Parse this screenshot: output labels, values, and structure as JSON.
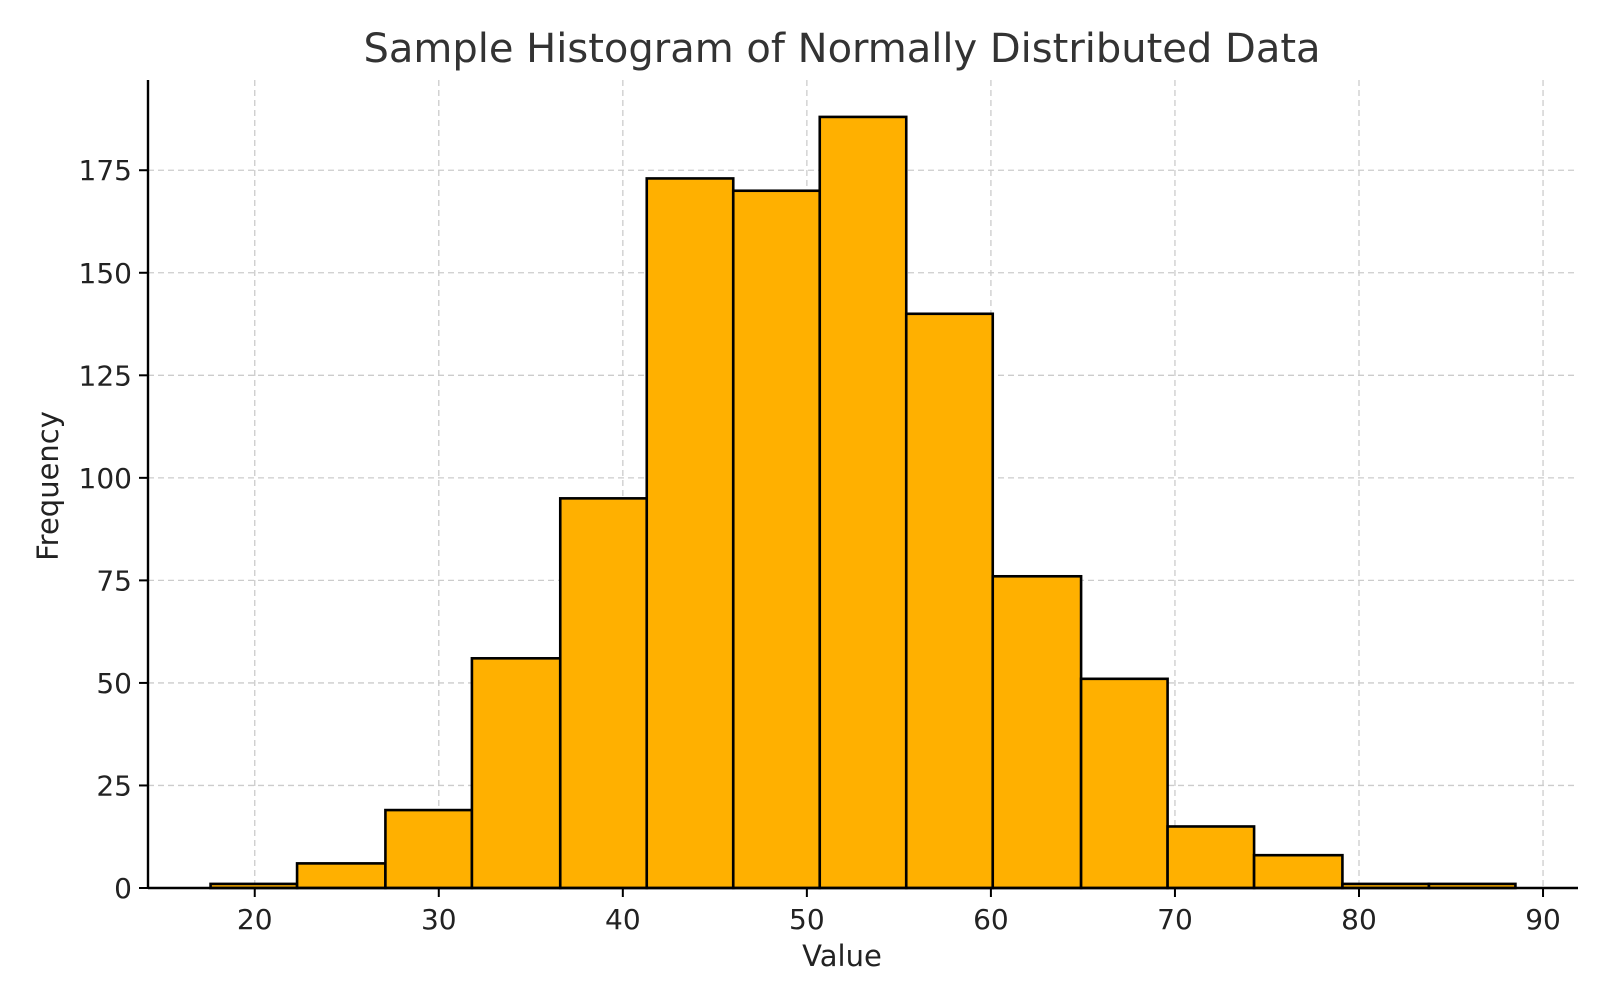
{
  "chart_data": {
    "type": "bar",
    "title": "Sample Histogram of Normally Distributed Data",
    "xlabel": "Value",
    "ylabel": "Frequency",
    "xlim": [
      14.2,
      91.9
    ],
    "ylim": [
      0,
      197
    ],
    "xticks": [
      20,
      30,
      40,
      50,
      60,
      70,
      80,
      90
    ],
    "yticks": [
      0,
      25,
      50,
      75,
      100,
      125,
      150,
      175
    ],
    "grid": true,
    "bins": [
      {
        "x0": 17.6,
        "x1": 22.3,
        "count": 1
      },
      {
        "x0": 22.3,
        "x1": 27.1,
        "count": 6
      },
      {
        "x0": 27.1,
        "x1": 31.8,
        "count": 19
      },
      {
        "x0": 31.8,
        "x1": 36.6,
        "count": 56
      },
      {
        "x0": 36.6,
        "x1": 41.3,
        "count": 95
      },
      {
        "x0": 41.3,
        "x1": 46.0,
        "count": 173
      },
      {
        "x0": 46.0,
        "x1": 50.7,
        "count": 170
      },
      {
        "x0": 50.7,
        "x1": 55.4,
        "count": 188
      },
      {
        "x0": 55.4,
        "x1": 60.1,
        "count": 140
      },
      {
        "x0": 60.1,
        "x1": 64.9,
        "count": 76
      },
      {
        "x0": 64.9,
        "x1": 69.6,
        "count": 51
      },
      {
        "x0": 69.6,
        "x1": 74.3,
        "count": 15
      },
      {
        "x0": 74.3,
        "x1": 79.1,
        "count": 8
      },
      {
        "x0": 79.1,
        "x1": 83.8,
        "count": 1
      },
      {
        "x0": 83.8,
        "x1": 88.5,
        "count": 1
      }
    ],
    "colors": {
      "bar_fill": "#FFB000",
      "bar_edge": "#000000",
      "grid": "#cccccc",
      "axis": "#000000",
      "text": "#222222",
      "title": "#333333"
    }
  }
}
